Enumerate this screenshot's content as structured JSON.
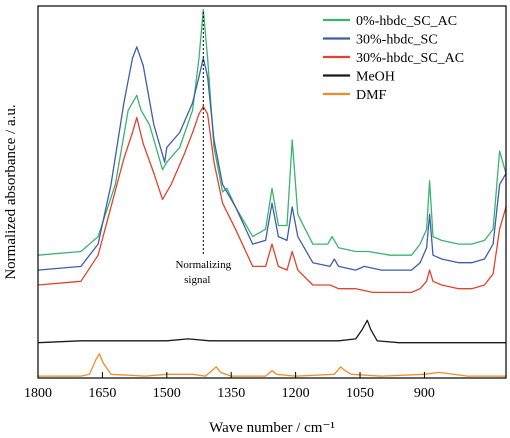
{
  "chart_data": {
    "type": "line",
    "title": "",
    "xlabel": "Wave number / cm⁻¹",
    "ylabel": "Normalized absorbance / a.u.",
    "xlim": [
      1800,
      710
    ],
    "ylim": [
      0,
      1
    ],
    "x_reversed": true,
    "x_ticks": [
      1800,
      1650,
      1500,
      1350,
      1200,
      1050,
      900
    ],
    "y_ticks_shown": false,
    "grid": false,
    "legend_position": "top-right",
    "annotation": {
      "label_line1": "Normalizing",
      "label_line2": "signal",
      "x": 1415
    },
    "series": [
      {
        "name": "0%-hbdc_SC_AC",
        "color": "#3cb371",
        "points": [
          [
            1800,
            0.33
          ],
          [
            1700,
            0.34
          ],
          [
            1660,
            0.38
          ],
          [
            1620,
            0.52
          ],
          [
            1590,
            0.72
          ],
          [
            1570,
            0.76
          ],
          [
            1560,
            0.72
          ],
          [
            1540,
            0.68
          ],
          [
            1510,
            0.56
          ],
          [
            1500,
            0.58
          ],
          [
            1470,
            0.62
          ],
          [
            1440,
            0.72
          ],
          [
            1425,
            0.86
          ],
          [
            1415,
            0.99
          ],
          [
            1405,
            0.86
          ],
          [
            1390,
            0.62
          ],
          [
            1370,
            0.5
          ],
          [
            1360,
            0.51
          ],
          [
            1340,
            0.46
          ],
          [
            1300,
            0.38
          ],
          [
            1270,
            0.4
          ],
          [
            1255,
            0.51
          ],
          [
            1240,
            0.41
          ],
          [
            1220,
            0.41
          ],
          [
            1208,
            0.64
          ],
          [
            1195,
            0.44
          ],
          [
            1160,
            0.36
          ],
          [
            1125,
            0.36
          ],
          [
            1115,
            0.38
          ],
          [
            1100,
            0.35
          ],
          [
            1060,
            0.34
          ],
          [
            1030,
            0.34
          ],
          [
            980,
            0.33
          ],
          [
            930,
            0.33
          ],
          [
            910,
            0.36
          ],
          [
            895,
            0.4
          ],
          [
            888,
            0.53
          ],
          [
            880,
            0.38
          ],
          [
            860,
            0.37
          ],
          [
            820,
            0.36
          ],
          [
            790,
            0.36
          ],
          [
            760,
            0.37
          ],
          [
            740,
            0.4
          ],
          [
            725,
            0.61
          ],
          [
            710,
            0.55
          ]
        ]
      },
      {
        "name": "30%-hbdc_SC",
        "color": "#3f5ea8",
        "points": [
          [
            1800,
            0.29
          ],
          [
            1700,
            0.3
          ],
          [
            1660,
            0.36
          ],
          [
            1630,
            0.52
          ],
          [
            1600,
            0.74
          ],
          [
            1580,
            0.86
          ],
          [
            1570,
            0.89
          ],
          [
            1555,
            0.84
          ],
          [
            1530,
            0.68
          ],
          [
            1505,
            0.58
          ],
          [
            1500,
            0.62
          ],
          [
            1470,
            0.66
          ],
          [
            1440,
            0.74
          ],
          [
            1425,
            0.81
          ],
          [
            1415,
            0.86
          ],
          [
            1405,
            0.81
          ],
          [
            1390,
            0.64
          ],
          [
            1370,
            0.52
          ],
          [
            1340,
            0.46
          ],
          [
            1300,
            0.36
          ],
          [
            1270,
            0.37
          ],
          [
            1255,
            0.47
          ],
          [
            1240,
            0.38
          ],
          [
            1220,
            0.37
          ],
          [
            1208,
            0.46
          ],
          [
            1195,
            0.38
          ],
          [
            1160,
            0.31
          ],
          [
            1120,
            0.3
          ],
          [
            1110,
            0.32
          ],
          [
            1100,
            0.3
          ],
          [
            1060,
            0.29
          ],
          [
            1040,
            0.3
          ],
          [
            1000,
            0.29
          ],
          [
            960,
            0.29
          ],
          [
            930,
            0.29
          ],
          [
            910,
            0.31
          ],
          [
            895,
            0.35
          ],
          [
            888,
            0.44
          ],
          [
            880,
            0.33
          ],
          [
            860,
            0.32
          ],
          [
            820,
            0.31
          ],
          [
            790,
            0.31
          ],
          [
            760,
            0.32
          ],
          [
            740,
            0.36
          ],
          [
            725,
            0.52
          ],
          [
            710,
            0.55
          ]
        ]
      },
      {
        "name": "30%-hbdc_SC_AC",
        "color": "#e0432e",
        "points": [
          [
            1800,
            0.25
          ],
          [
            1700,
            0.26
          ],
          [
            1660,
            0.33
          ],
          [
            1630,
            0.46
          ],
          [
            1600,
            0.59
          ],
          [
            1580,
            0.66
          ],
          [
            1570,
            0.7
          ],
          [
            1555,
            0.63
          ],
          [
            1530,
            0.55
          ],
          [
            1510,
            0.48
          ],
          [
            1490,
            0.52
          ],
          [
            1460,
            0.6
          ],
          [
            1440,
            0.66
          ],
          [
            1425,
            0.71
          ],
          [
            1415,
            0.73
          ],
          [
            1405,
            0.71
          ],
          [
            1390,
            0.58
          ],
          [
            1370,
            0.47
          ],
          [
            1340,
            0.4
          ],
          [
            1300,
            0.3
          ],
          [
            1270,
            0.3
          ],
          [
            1255,
            0.36
          ],
          [
            1240,
            0.3
          ],
          [
            1220,
            0.29
          ],
          [
            1208,
            0.34
          ],
          [
            1195,
            0.29
          ],
          [
            1160,
            0.25
          ],
          [
            1120,
            0.25
          ],
          [
            1100,
            0.24
          ],
          [
            1060,
            0.24
          ],
          [
            1020,
            0.23
          ],
          [
            980,
            0.23
          ],
          [
            930,
            0.23
          ],
          [
            910,
            0.24
          ],
          [
            895,
            0.26
          ],
          [
            888,
            0.29
          ],
          [
            880,
            0.26
          ],
          [
            860,
            0.25
          ],
          [
            820,
            0.24
          ],
          [
            790,
            0.24
          ],
          [
            760,
            0.25
          ],
          [
            740,
            0.28
          ],
          [
            725,
            0.4
          ],
          [
            710,
            0.46
          ]
        ]
      },
      {
        "name": "MeOH",
        "color": "#1a1a1a",
        "points": [
          [
            1800,
            0.095
          ],
          [
            1700,
            0.1
          ],
          [
            1600,
            0.1
          ],
          [
            1500,
            0.1
          ],
          [
            1450,
            0.105
          ],
          [
            1400,
            0.1
          ],
          [
            1350,
            0.1
          ],
          [
            1300,
            0.1
          ],
          [
            1200,
            0.1
          ],
          [
            1150,
            0.1
          ],
          [
            1100,
            0.1
          ],
          [
            1060,
            0.105
          ],
          [
            1045,
            0.13
          ],
          [
            1033,
            0.155
          ],
          [
            1025,
            0.13
          ],
          [
            1010,
            0.1
          ],
          [
            960,
            0.095
          ],
          [
            900,
            0.095
          ],
          [
            800,
            0.095
          ],
          [
            710,
            0.095
          ]
        ]
      },
      {
        "name": "DMF",
        "color": "#f28c28",
        "points": [
          [
            1800,
            0.005
          ],
          [
            1700,
            0.005
          ],
          [
            1680,
            0.01
          ],
          [
            1665,
            0.05
          ],
          [
            1657,
            0.065
          ],
          [
            1648,
            0.04
          ],
          [
            1630,
            0.01
          ],
          [
            1550,
            0.005
          ],
          [
            1500,
            0.01
          ],
          [
            1440,
            0.01
          ],
          [
            1410,
            0.005
          ],
          [
            1395,
            0.02
          ],
          [
            1385,
            0.03
          ],
          [
            1375,
            0.015
          ],
          [
            1350,
            0.005
          ],
          [
            1270,
            0.005
          ],
          [
            1255,
            0.02
          ],
          [
            1245,
            0.01
          ],
          [
            1200,
            0.005
          ],
          [
            1110,
            0.01
          ],
          [
            1095,
            0.03
          ],
          [
            1085,
            0.02
          ],
          [
            1070,
            0.01
          ],
          [
            1000,
            0.005
          ],
          [
            900,
            0.01
          ],
          [
            866,
            0.015
          ],
          [
            800,
            0.005
          ],
          [
            710,
            0.005
          ]
        ]
      }
    ]
  }
}
